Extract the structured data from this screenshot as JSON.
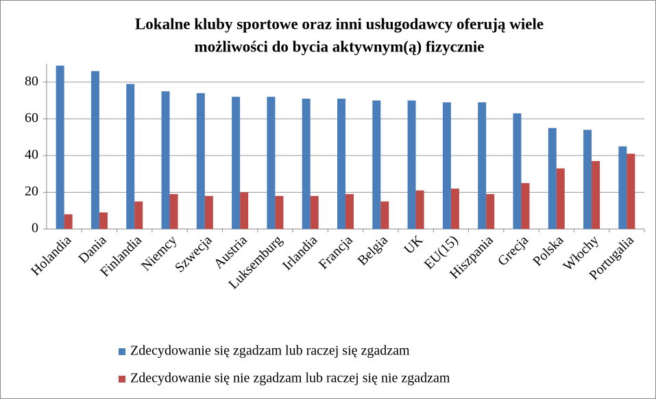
{
  "chart_data": {
    "type": "bar",
    "title": [
      "Lokalne kluby sportowe oraz inni usługodawcy oferują wiele",
      "możliwości do bycia aktywnym(ą) fizycznie"
    ],
    "categories": [
      "Holandia",
      "Dania",
      "Finlandia",
      "Niemcy",
      "Szwecja",
      "Austria",
      "Luksemburg",
      "Irlandia",
      "Francja",
      "Belgia",
      "UK",
      "EU(15)",
      "Hiszpania",
      "Grecja",
      "Polska",
      "Włochy",
      "Portugalia"
    ],
    "series": [
      {
        "name": "Zdecydowanie się zgadzam lub raczej się zgadzam",
        "color": "#4a7ebb",
        "values": [
          89,
          86,
          79,
          75,
          74,
          72,
          72,
          71,
          71,
          70,
          70,
          69,
          69,
          63,
          55,
          54,
          45
        ]
      },
      {
        "name": "Zdecydowanie się nie zgadzam lub raczej się nie zgadzam",
        "color": "#be4b48",
        "values": [
          8,
          9,
          15,
          19,
          18,
          20,
          18,
          18,
          19,
          15,
          21,
          22,
          19,
          25,
          33,
          37,
          41
        ]
      }
    ],
    "ylim": [
      0,
      90
    ],
    "yticks": [
      0,
      20,
      40,
      60,
      80
    ],
    "grid": true,
    "legend": "bottom"
  }
}
